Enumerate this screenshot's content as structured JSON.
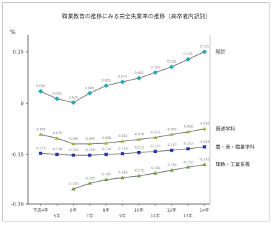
{
  "chart_data": {
    "type": "line",
    "title": "職業教育の推移にみる完全失業率の推移（高卒者内訳別）",
    "ylabel": "%",
    "ylim": [
      -0.25,
      0.2
    ],
    "yticks": [
      "0.15",
      "0",
      "-0.15",
      "-0.30"
    ],
    "categories": [
      "平成4年",
      "5年",
      "6年",
      "7年",
      "8年",
      "9年",
      "10年",
      "11年",
      "12年",
      "13年",
      "14年"
    ],
    "series": [
      {
        "name": "総計",
        "color": "#2aa7b3",
        "marker": "diamond",
        "values": [
          0.05,
          0.03,
          0.02,
          0.045,
          0.065,
          0.075,
          0.085,
          0.1,
          0.115,
          0.135,
          0.155
        ]
      },
      {
        "name": "普通学科",
        "color": "#9fb53a",
        "marker": "triangle",
        "values": [
          -0.065,
          -0.075,
          -0.09,
          -0.09,
          -0.088,
          -0.083,
          -0.078,
          -0.073,
          -0.065,
          -0.058,
          -0.05
        ]
      },
      {
        "name": "農・商・職業学科",
        "color": "#2b3aa6",
        "marker": "square",
        "values": [
          -0.115,
          -0.118,
          -0.12,
          -0.12,
          -0.118,
          -0.116,
          -0.113,
          -0.11,
          -0.107,
          -0.103,
          -0.098
        ]
      },
      {
        "name": "理数・工業系等",
        "color": "#6f9a3e",
        "marker": "triangle",
        "values": [
          null,
          null,
          -0.21,
          -0.195,
          -0.185,
          -0.18,
          -0.175,
          -0.168,
          -0.16,
          -0.152,
          -0.145
        ]
      }
    ]
  }
}
